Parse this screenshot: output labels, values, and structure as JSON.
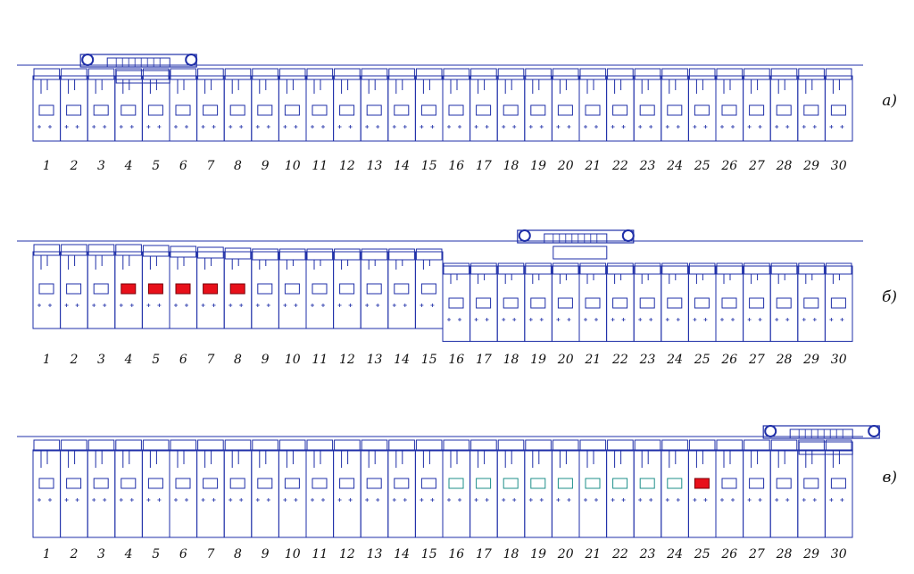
{
  "panels": [
    {
      "label": "а)",
      "section_numbers": [
        "1",
        "2",
        "3",
        "4",
        "5",
        "6",
        "7",
        "8",
        "9",
        "10",
        "11",
        "12",
        "13",
        "14",
        "15",
        "16",
        "17",
        "18",
        "19",
        "20",
        "21",
        "22",
        "23",
        "24",
        "25",
        "26",
        "27",
        "28",
        "29",
        "30"
      ],
      "roof_rises": [
        0,
        0,
        0,
        0,
        0,
        0,
        0,
        0,
        0,
        0,
        0,
        0,
        0,
        0,
        0,
        0,
        0,
        0,
        0,
        0,
        0,
        0,
        0,
        0,
        0,
        0,
        0,
        0,
        0,
        0
      ],
      "advanced_sections": [],
      "shifted_sections": [],
      "combine_over_section": 3
    },
    {
      "label": "б)",
      "section_numbers": [
        "1",
        "2",
        "3",
        "4",
        "5",
        "6",
        "7",
        "8",
        "9",
        "10",
        "11",
        "12",
        "13",
        "14",
        "15",
        "16",
        "17",
        "18",
        "19",
        "20",
        "21",
        "22",
        "23",
        "24",
        "25",
        "26",
        "27",
        "28",
        "29",
        "30"
      ],
      "roof_rises": [
        0,
        0,
        0,
        0,
        1,
        2,
        3,
        4,
        5,
        5,
        5,
        5,
        5,
        5,
        5,
        5,
        5,
        5,
        5,
        5,
        5,
        5,
        5,
        5,
        5,
        5,
        5,
        5,
        5,
        5
      ],
      "advanced_sections": [
        4,
        5,
        6,
        7,
        8
      ],
      "shifted_sections": [],
      "combine_over_section": 19
    },
    {
      "label": "в)",
      "section_numbers": [
        "1",
        "2",
        "3",
        "4",
        "5",
        "6",
        "7",
        "8",
        "9",
        "10",
        "11",
        "12",
        "13",
        "14",
        "15",
        "16",
        "17",
        "18",
        "19",
        "20",
        "21",
        "22",
        "23",
        "24",
        "25",
        "26",
        "27",
        "28",
        "29",
        "30"
      ],
      "roof_rises": [
        0,
        0,
        0,
        0,
        0,
        0,
        0,
        0,
        0,
        0,
        0,
        0,
        0,
        0,
        0,
        0,
        0,
        0,
        0,
        0,
        0,
        0,
        0,
        0,
        0,
        0,
        0,
        0,
        0,
        0
      ],
      "advanced_sections": [
        25
      ],
      "shifted_sections": [
        16,
        17,
        18,
        19,
        20,
        21,
        22,
        23,
        24
      ],
      "combine_over_section": 28
    }
  ],
  "colors": {
    "line": "#1f2fa8",
    "advanced_fill": "#e8101a",
    "shifted_stroke": "#1e8f8a",
    "text": "#111111"
  }
}
